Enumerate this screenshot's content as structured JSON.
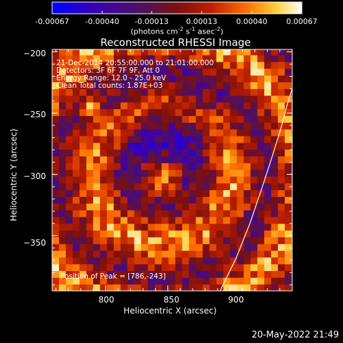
{
  "colorbar": {
    "ticks": [
      "-0.00067",
      "-0.00040",
      "-0.00013",
      "0.00013",
      "0.00040",
      "0.00067"
    ],
    "unit_main": "(photons cm",
    "unit_sup1": "-2",
    "unit_mid1": " s",
    "unit_sup2": "-1",
    "unit_mid2": " asec",
    "unit_sup3": "-2",
    "unit_end": ")",
    "colors": [
      "#0000ff",
      "#3c00b0",
      "#501060",
      "#7a1010",
      "#c02000",
      "#ff7000",
      "#ffd040",
      "#ffffff"
    ]
  },
  "chart_data": {
    "type": "heatmap",
    "title": "Reconstructed RHESSI Image",
    "xlabel": "Heliocentric X (arcsec)",
    "ylabel": "Heliocentric Y (arcsec)",
    "xlim": [
      757,
      950
    ],
    "ylim": [
      -395,
      -198
    ],
    "x_ticks": [
      800,
      850,
      900
    ],
    "y_ticks": [
      -200,
      -250,
      -300,
      -350
    ],
    "x_tick_labels": [
      "800",
      "850",
      "900"
    ],
    "y_tick_labels": [
      "−200",
      "−250",
      "−300",
      "−350"
    ],
    "zlim": [
      -0.00067,
      0.00067
    ],
    "peak_position": [
      786,
      -243
    ],
    "limb_curve": [
      [
        892,
        -395
      ],
      [
        905,
        -368
      ],
      [
        916,
        -340
      ],
      [
        926,
        -310
      ],
      [
        934,
        -285
      ],
      [
        941,
        -262
      ],
      [
        946,
        -243
      ],
      [
        950,
        -230
      ]
    ]
  },
  "info": {
    "line1": "21-Dec-2014 20:55:00.000 to 21:01:00.000",
    "line2": "Detectors: 3F 6F 7F 9F, Att 0",
    "line3": "Energy Range: 12.0 - 25.0 keV",
    "line4": "Clean     Total counts: 1.87E+03"
  },
  "peak_text": "Position of Peak = [786,-243]",
  "timestamp": "20-May-2022 21:49"
}
